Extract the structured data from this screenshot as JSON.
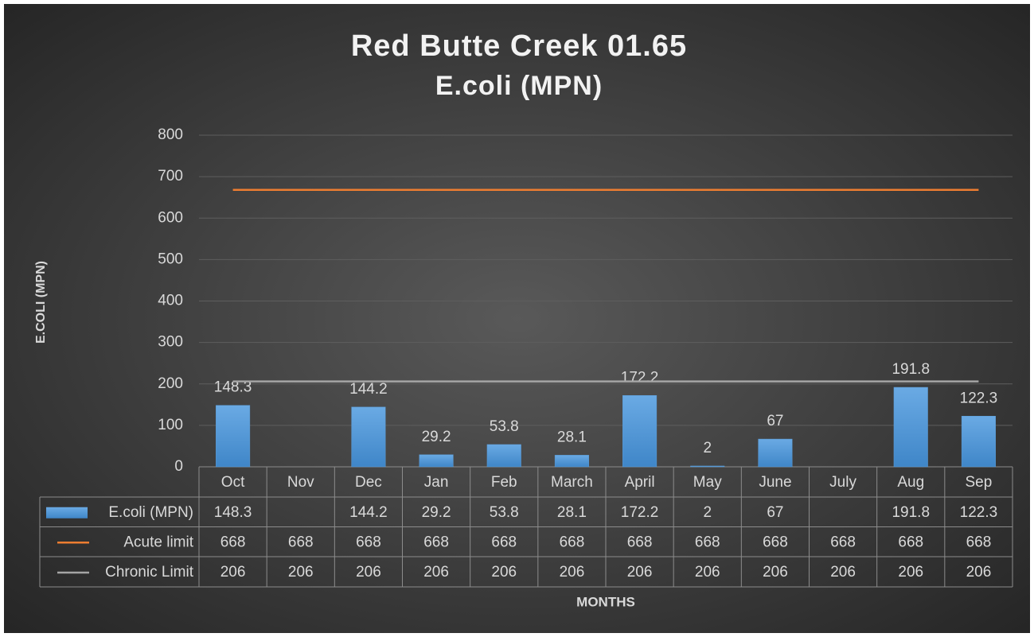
{
  "chart_data": {
    "type": "bar",
    "title": "Red Butte Creek 01.65",
    "subtitle": "E.coli (MPN)",
    "y_label": "E.COLI (MPN)",
    "x_label": "MONTHS",
    "categories": [
      "Oct",
      "Nov",
      "Dec",
      "Jan",
      "Feb",
      "March",
      "April",
      "May",
      "June",
      "July",
      "Aug",
      "Sep"
    ],
    "series": [
      {
        "name": "E.coli (MPN)",
        "type": "bar",
        "color": "#5b9bd5",
        "values": [
          148.3,
          null,
          144.2,
          29.2,
          53.8,
          28.1,
          172.2,
          2,
          67,
          null,
          191.8,
          122.3
        ]
      },
      {
        "name": "Acute limit",
        "type": "line",
        "color": "#ed7d31",
        "values": [
          668,
          668,
          668,
          668,
          668,
          668,
          668,
          668,
          668,
          668,
          668,
          668
        ]
      },
      {
        "name": "Chronic Limit",
        "type": "line",
        "color": "#a5a5a5",
        "values": [
          206,
          206,
          206,
          206,
          206,
          206,
          206,
          206,
          206,
          206,
          206,
          206
        ]
      }
    ],
    "ylim": [
      0,
      800
    ],
    "yticks": [
      0,
      100,
      200,
      300,
      400,
      500,
      600,
      700,
      800
    ],
    "grid": true,
    "data_table": true
  }
}
